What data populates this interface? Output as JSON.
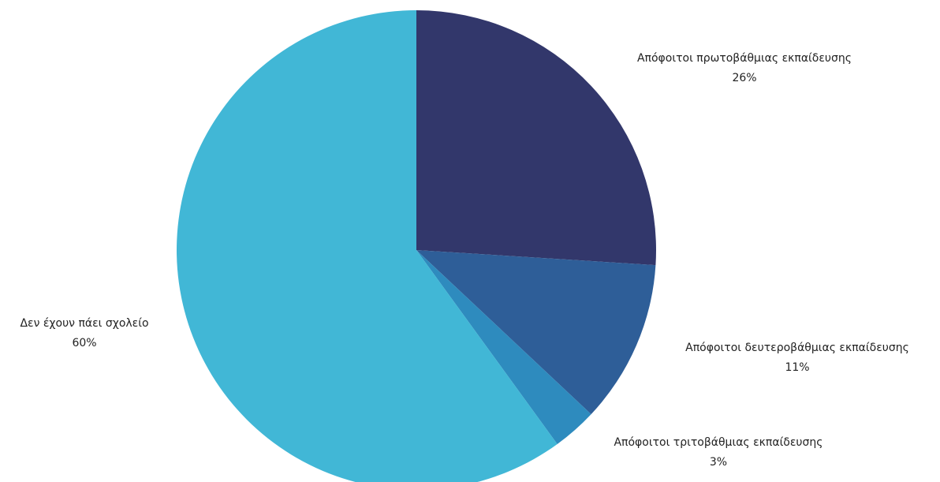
{
  "chart_data": {
    "type": "pie",
    "title": "",
    "start_angle_deg": 90,
    "direction": "clockwise",
    "slices": [
      {
        "label": "Απόφοιτοι πρωτοβάθμιας εκπαίδευσης",
        "value": 26,
        "value_label": "26%",
        "color": "#32376B"
      },
      {
        "label": "Απόφοιτοι δευτεροβάθμιας εκπαίδευσης",
        "value": 11,
        "value_label": "11%",
        "color": "#2E5E98"
      },
      {
        "label": "Απόφοιτοι τριτοβάθμιας εκπαίδευσης",
        "value": 3,
        "value_label": "3%",
        "color": "#2E8BBE"
      },
      {
        "label": "Δεν έχουν πάει σχολείο",
        "value": 60,
        "value_label": "60%",
        "color": "#41B7D6"
      }
    ]
  }
}
